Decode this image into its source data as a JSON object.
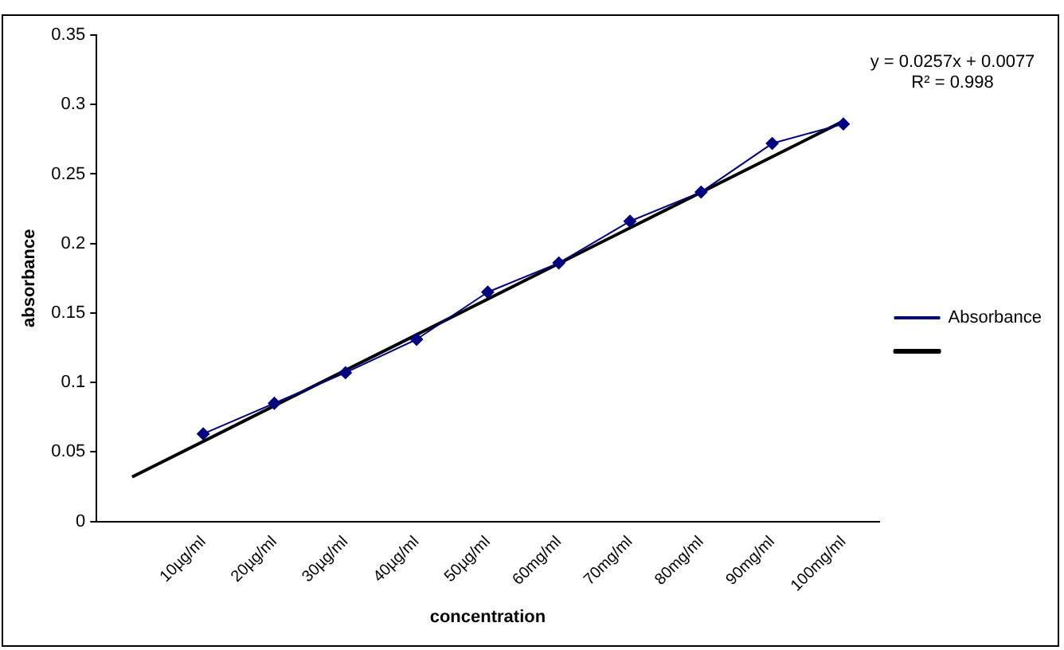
{
  "chart_data": {
    "type": "line",
    "xlabel": "concentration",
    "ylabel": "absorbance",
    "categories": [
      null,
      "10µg/ml",
      "20µg/ml",
      "30µg/ml",
      "40µg/ml",
      "50µg/ml",
      "60mg/ml",
      "70mg/ml",
      "80mg/ml",
      "90mg/ml",
      "100mg/ml"
    ],
    "series": [
      {
        "name": "Absorbance",
        "color": "#000080",
        "marker": "diamond",
        "values": [
          null,
          0.063,
          0.085,
          0.107,
          0.131,
          0.165,
          0.186,
          0.216,
          0.237,
          0.272,
          0.286
        ]
      },
      {
        "color": "#000000",
        "marker": "none",
        "values": [
          0.032,
          null,
          null,
          null,
          null,
          null,
          null,
          null,
          null,
          null,
          0.288
        ]
      }
    ],
    "ylim": [
      0,
      0.35
    ],
    "yticks": [
      0,
      0.05,
      0.1,
      0.15,
      0.2,
      0.25,
      0.3,
      0.35
    ],
    "grid": false,
    "legend": "right",
    "annotations": [
      "y = 0.0257x + 0.0077",
      "R² = 0.998"
    ]
  }
}
